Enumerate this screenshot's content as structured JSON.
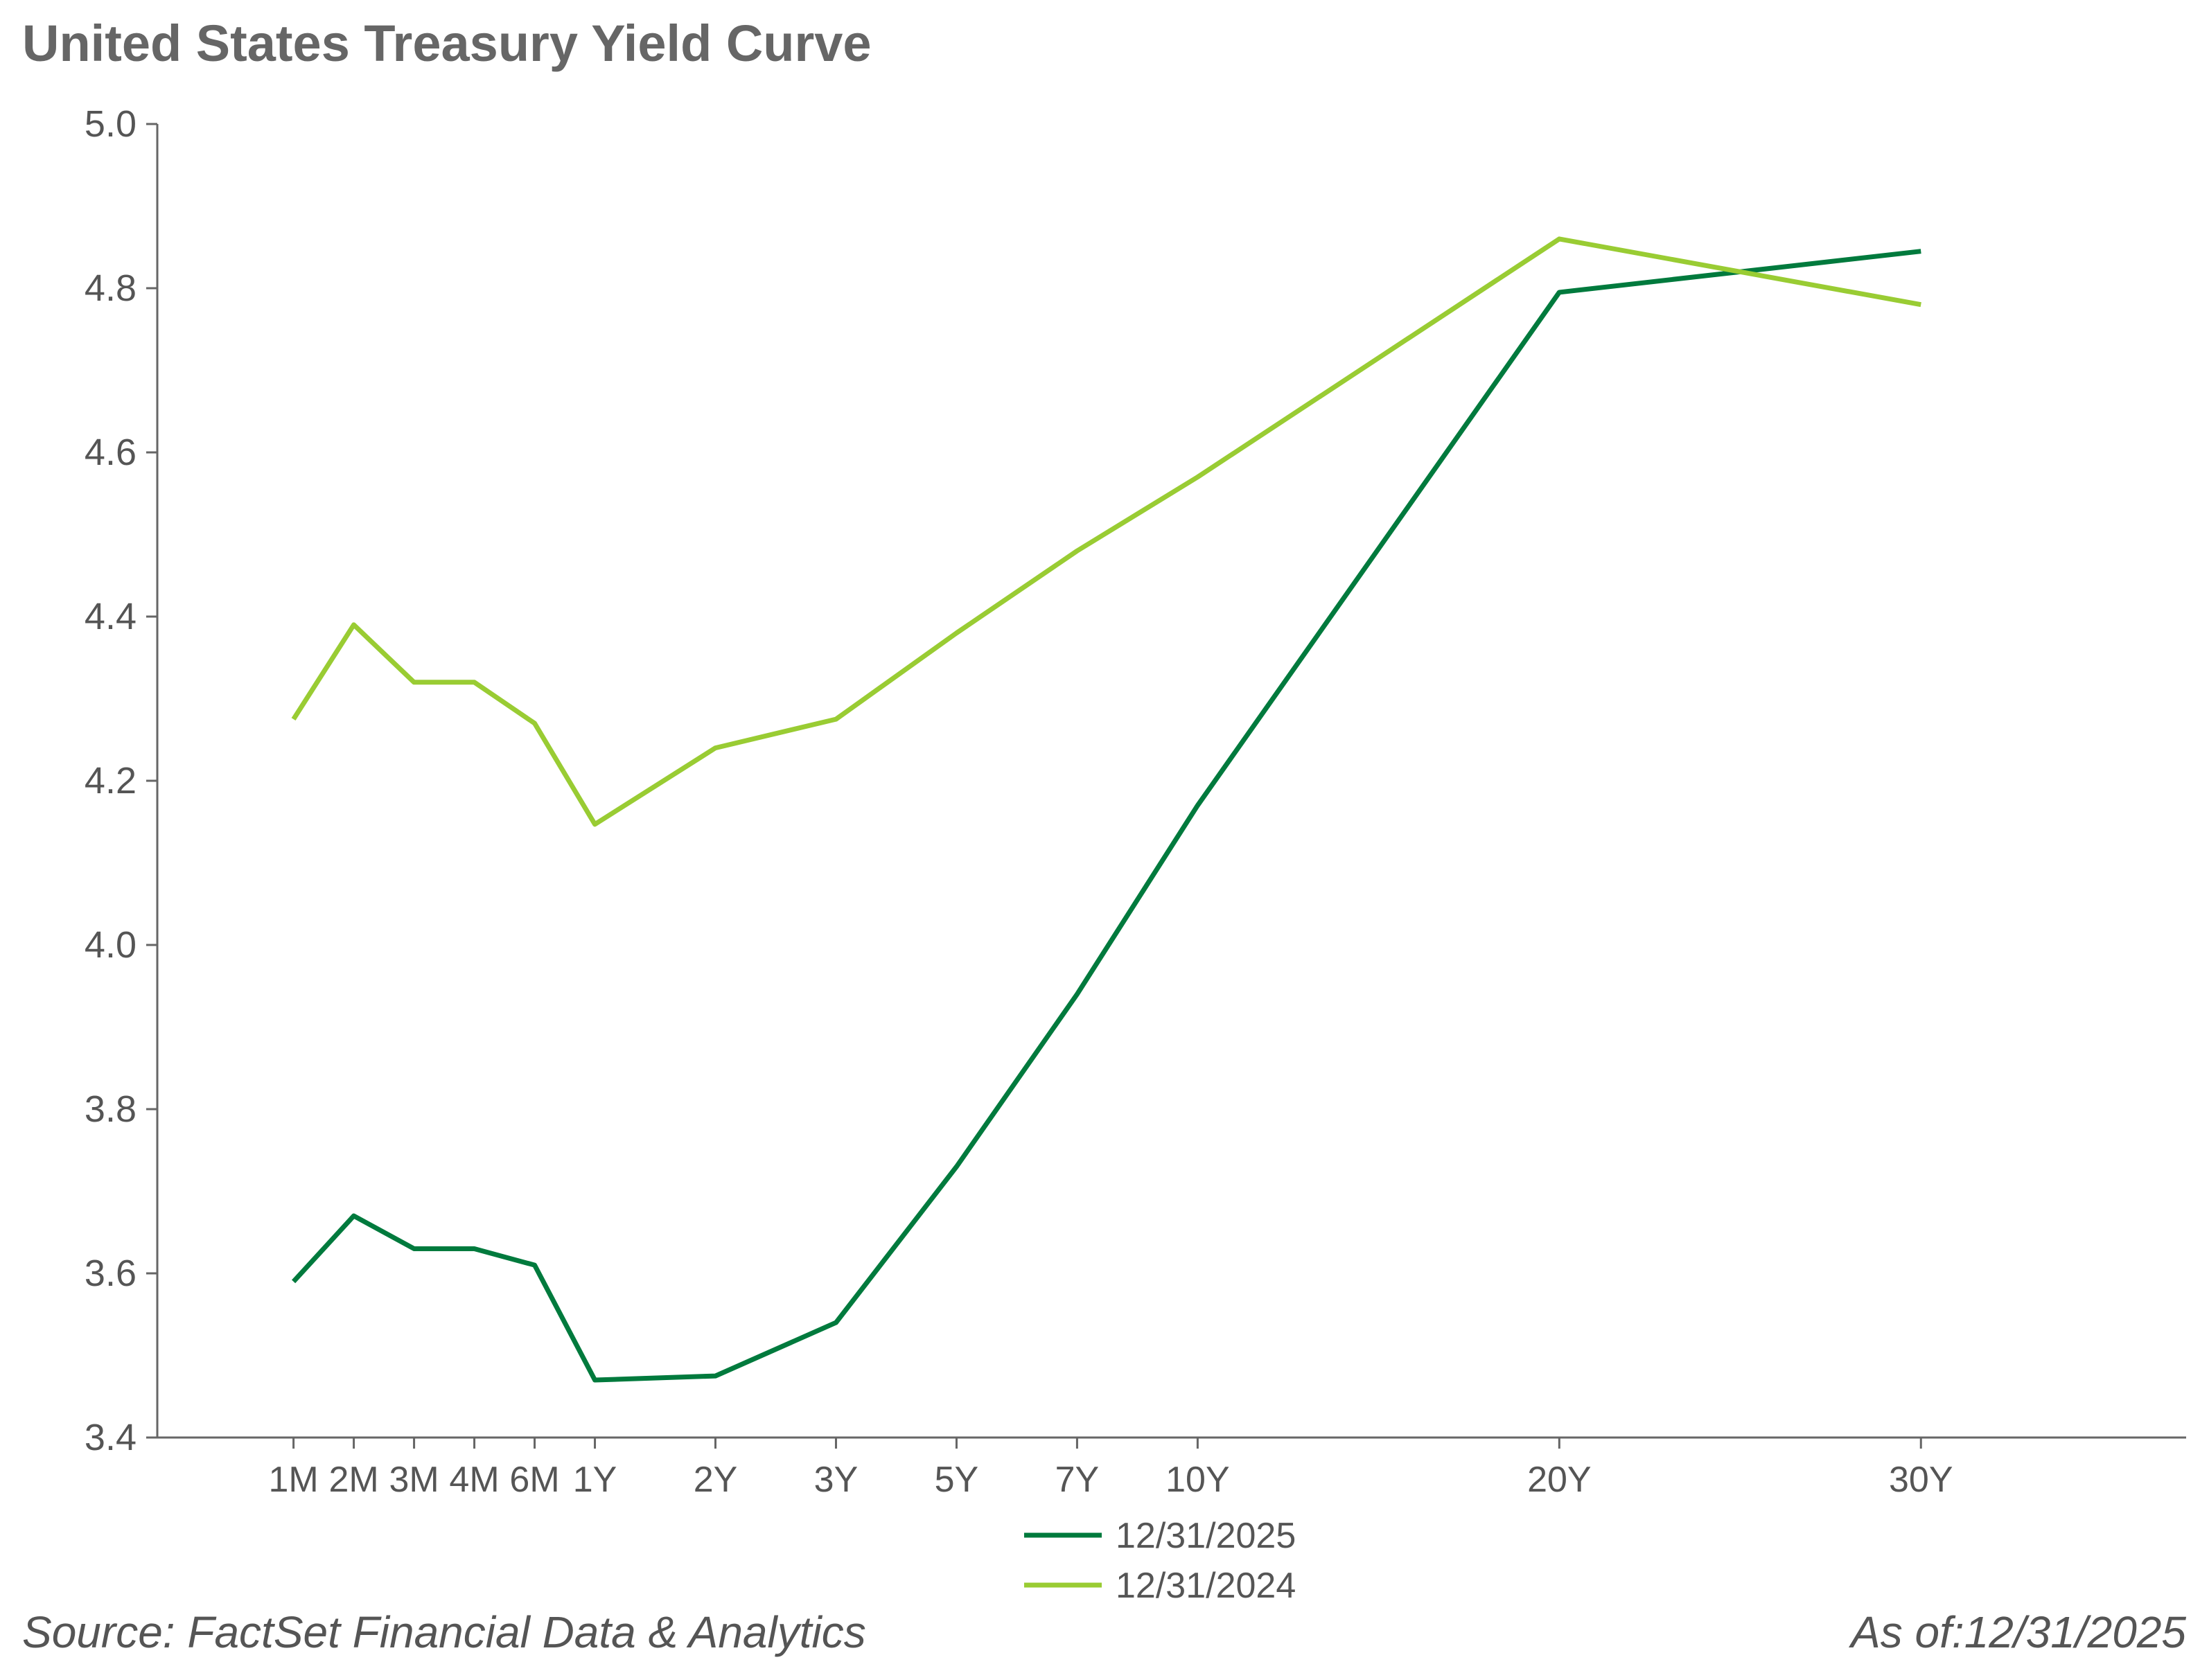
{
  "chart_data": {
    "type": "line",
    "title": "United States Treasury Yield Curve",
    "x": [
      0,
      1,
      2,
      3,
      4,
      5,
      7,
      9,
      11,
      13,
      15,
      21,
      27
    ],
    "xlim": [
      -2.26,
      31.4
    ],
    "xticks": [
      {
        "value": 0,
        "label": "1M"
      },
      {
        "value": 1,
        "label": "2M"
      },
      {
        "value": 2,
        "label": "3M"
      },
      {
        "value": 3,
        "label": "4M"
      },
      {
        "value": 4,
        "label": "6M"
      },
      {
        "value": 5,
        "label": "1Y"
      },
      {
        "value": 7,
        "label": "2Y"
      },
      {
        "value": 9,
        "label": "3Y"
      },
      {
        "value": 11,
        "label": "5Y"
      },
      {
        "value": 13,
        "label": "7Y"
      },
      {
        "value": 15,
        "label": "10Y"
      },
      {
        "value": 21,
        "label": "20Y"
      },
      {
        "value": 27,
        "label": "30Y"
      }
    ],
    "ylim": [
      3.4,
      5.0
    ],
    "yticks": [
      {
        "value": 3.4,
        "label": "3.4"
      },
      {
        "value": 3.6,
        "label": "3.6"
      },
      {
        "value": 3.8,
        "label": "3.8"
      },
      {
        "value": 4.0,
        "label": "4.0"
      },
      {
        "value": 4.2,
        "label": "4.2"
      },
      {
        "value": 4.4,
        "label": "4.4"
      },
      {
        "value": 4.6,
        "label": "4.6"
      },
      {
        "value": 4.8,
        "label": "4.8"
      },
      {
        "value": 5.0,
        "label": "5.0"
      }
    ],
    "series": [
      {
        "name": "12/31/2025",
        "color": "#007a3d",
        "values": [
          3.59,
          3.67,
          3.63,
          3.63,
          3.61,
          3.47,
          3.475,
          3.54,
          3.73,
          3.94,
          4.17,
          4.795,
          4.845
        ]
      },
      {
        "name": "12/31/2024",
        "color": "#99cc33",
        "values": [
          4.275,
          4.39,
          4.32,
          4.32,
          4.27,
          4.147,
          4.24,
          4.275,
          4.38,
          4.48,
          4.57,
          4.86,
          4.78
        ]
      }
    ],
    "source": "Source: FactSet Financial Data & Analytics",
    "as_of": "As of:12/31/2025"
  }
}
